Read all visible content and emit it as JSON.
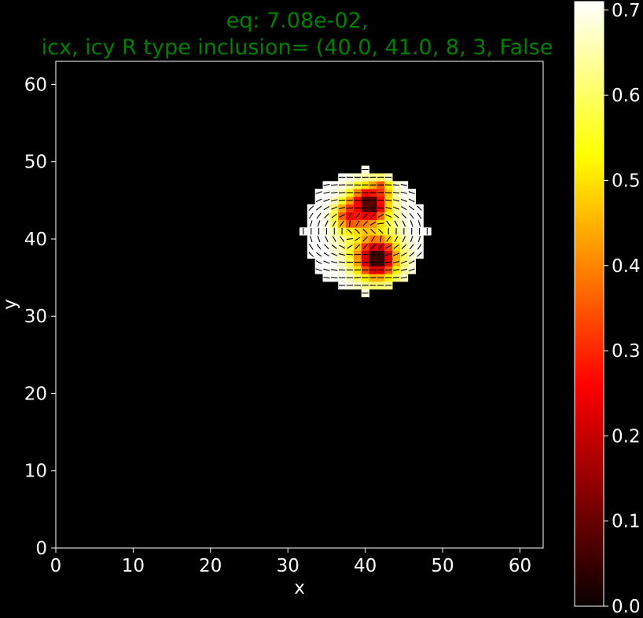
{
  "chart_data": {
    "type": "heatmap",
    "title_lines": [
      "eq: 7.08e-02,",
      "icx, icy R type inclusion= (40.0, 41.0, 8, 3, False"
    ],
    "xlabel": "x",
    "ylabel": "y",
    "xlim": [
      0,
      63
    ],
    "ylim": [
      0,
      63
    ],
    "xticks": [
      0,
      10,
      20,
      30,
      40,
      50,
      60
    ],
    "yticks": [
      0,
      10,
      20,
      30,
      40,
      50,
      60
    ],
    "colorbar": {
      "colormap": "hot",
      "range": [
        0.0,
        0.71
      ],
      "ticks": [
        0.0,
        0.1,
        0.2,
        0.3,
        0.4,
        0.5,
        0.6,
        0.7
      ],
      "tick_labels": [
        "0.0",
        "0.1",
        "0.2",
        "0.3",
        "0.4",
        "0.5",
        "0.6",
        "0.7"
      ]
    },
    "background_value": 0.0,
    "inclusion": {
      "center_x": 40.0,
      "center_y": 41.0,
      "radius": 8,
      "outer_value": 0.71,
      "hot_spots": [
        {
          "x": 40.5,
          "y": 44.5,
          "value": 0.0,
          "spread": 1.6
        },
        {
          "x": 41.5,
          "y": 37.5,
          "value": 0.0,
          "spread": 1.8
        },
        {
          "x": 38.0,
          "y": 43.0,
          "value": 0.25,
          "spread": 1.2
        },
        {
          "x": 42.0,
          "y": 46.5,
          "value": 0.3,
          "spread": 0.8
        }
      ],
      "quiver": "director line segments on every cell of the inclusion"
    },
    "colors": {
      "background": "#000000",
      "title": "#008000",
      "text": "#ffffff",
      "quiver": "#000000"
    }
  }
}
